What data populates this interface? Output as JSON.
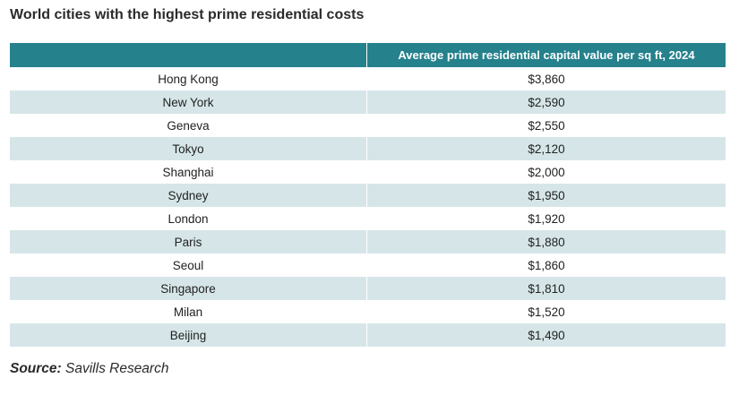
{
  "title": "World cities with the highest prime residential costs",
  "source": {
    "label": "Source:",
    "text": "Savills Research"
  },
  "colors": {
    "header_bg": "#25818c",
    "header_text": "#ffffff",
    "stripe": "#d6e6e8"
  },
  "chart_data": {
    "type": "table",
    "title": "World cities with the highest prime residential costs",
    "columns": [
      "",
      "Average prime residential capital value per sq ft, 2024"
    ],
    "rows": [
      {
        "city": "Hong Kong",
        "value": "$3,860"
      },
      {
        "city": "New York",
        "value": "$2,590"
      },
      {
        "city": "Geneva",
        "value": "$2,550"
      },
      {
        "city": "Tokyo",
        "value": "$2,120"
      },
      {
        "city": "Shanghai",
        "value": "$2,000"
      },
      {
        "city": "Sydney",
        "value": "$1,950"
      },
      {
        "city": "London",
        "value": "$1,920"
      },
      {
        "city": "Paris",
        "value": "$1,880"
      },
      {
        "city": "Seoul",
        "value": "$1,860"
      },
      {
        "city": "Singapore",
        "value": "$1,810"
      },
      {
        "city": "Milan",
        "value": "$1,520"
      },
      {
        "city": "Beijing",
        "value": "$1,490"
      }
    ]
  }
}
